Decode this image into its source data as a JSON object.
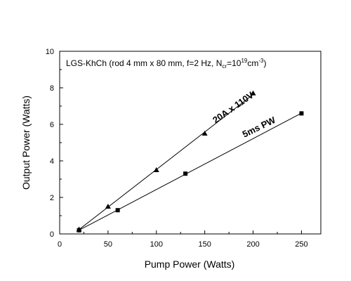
{
  "chart_data": {
    "type": "scatter",
    "title": "",
    "annotation": {
      "prefix": "LGS-KhCh (rod 4 mm x 80 mm, f=2 Hz, N",
      "subscript": "cr",
      "middle": "=10",
      "superscript1": "19",
      "unit": "cm",
      "superscript2": "-3",
      "suffix": ")"
    },
    "xlabel": "Pump Power (Watts)",
    "ylabel": "Output Power (Watts)",
    "xlim": [
      0,
      270
    ],
    "ylim": [
      0,
      10
    ],
    "xticks": [
      0,
      50,
      100,
      150,
      200,
      250
    ],
    "yticks": [
      0,
      2,
      4,
      6,
      8,
      10
    ],
    "xtick_labels": [
      "0",
      "50",
      "100",
      "150",
      "200",
      "250"
    ],
    "ytick_labels": [
      "0",
      "2",
      "4",
      "6",
      "8",
      "10"
    ],
    "grid": false,
    "legend": "none",
    "series": [
      {
        "label": "20A x 110V",
        "marker": "triangle",
        "color": "#000000",
        "x": [
          20,
          50,
          100,
          150,
          200
        ],
        "y": [
          0.25,
          1.5,
          3.5,
          5.5,
          7.7
        ]
      },
      {
        "label": "5ms PW",
        "marker": "square",
        "color": "#000000",
        "x": [
          20,
          60,
          130,
          250
        ],
        "y": [
          0.2,
          1.3,
          3.3,
          6.6
        ]
      }
    ]
  }
}
